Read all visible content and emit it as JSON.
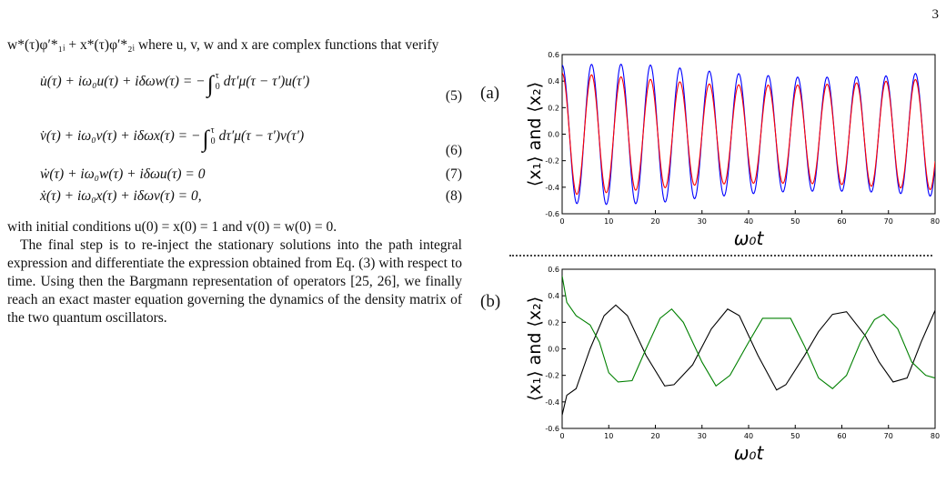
{
  "page_number": "3",
  "text": {
    "intro": "w*(τ)φ′*₁ᵢ + x*(τ)φ′*₂ᵢ where u, v, w and x are complex functions that verify",
    "eq5_lhs": "u̇(τ) + iω₀u(τ) + iδωw(τ) = −",
    "eq5_rhs": "dτ′μ(τ − τ′)u(τ′)",
    "eq5_num": "(5)",
    "eq6_lhs": "v̇(τ) + iω₀v(τ) + iδωx(τ) = −",
    "eq6_rhs": "dτ′μ(τ − τ′)v(τ′)",
    "eq6_num": "(6)",
    "eq7": "ẇ(τ) + iω₀w(τ) + iδωu(τ) = 0",
    "eq7_num": "(7)",
    "eq8": "ẋ(τ) + iω₀x(τ) + iδωv(τ) = 0,",
    "eq8_num": "(8)",
    "int_upper": "τ",
    "int_lower": "0",
    "initial": "with initial conditions u(0) = x(0) = 1 and v(0) = w(0) = 0.",
    "final": "The final step is to re-inject the stationary solutions into the path integral expression and differentiate the expression obtained from Eq. (3) with respect to time. Using then the Bargmann representation of operators [25, 26], we finally reach an exact master equation governing the dynamics of the density matrix of the two quantum oscillators."
  },
  "panels": {
    "a_label": "(a)",
    "b_label": "(b)",
    "ylabel": "⟨x₁⟩ and ⟨x₂⟩",
    "xlabel": "ω₀t"
  },
  "chart_data": [
    {
      "type": "line",
      "panel": "(a)",
      "xlabel": "ω₀t",
      "ylabel": "⟨x₁⟩ and ⟨x₂⟩",
      "xlim": [
        0,
        80
      ],
      "ylim": [
        -0.6,
        0.6
      ],
      "xticks": [
        0,
        10,
        20,
        30,
        40,
        50,
        60,
        70,
        80
      ],
      "yticks": [
        -0.6,
        -0.4,
        -0.2,
        0.0,
        0.2,
        0.4,
        0.6
      ],
      "series": [
        {
          "color": "#0000ff",
          "form": "cos",
          "omega": 0.995,
          "amp": [
            0.52,
            0.53,
            0.52,
            0.48,
            0.45,
            0.43,
            0.43,
            0.44,
            0.47
          ]
        },
        {
          "color": "#ff0000",
          "form": "cos",
          "omega": 0.995,
          "amp": [
            0.46,
            0.44,
            0.41,
            0.38,
            0.37,
            0.37,
            0.38,
            0.4,
            0.42
          ]
        }
      ]
    },
    {
      "type": "line",
      "panel": "(b)",
      "xlabel": "ω₀t",
      "ylabel": "⟨x₁⟩ and ⟨x₂⟩",
      "xlim": [
        0,
        80
      ],
      "ylim": [
        -0.6,
        0.6
      ],
      "xticks": [
        0,
        10,
        20,
        30,
        40,
        50,
        60,
        70,
        80
      ],
      "yticks": [
        -0.6,
        -0.4,
        -0.2,
        0.0,
        0.2,
        0.4,
        0.6
      ],
      "series": [
        {
          "color": "#000000",
          "points": [
            [
              0,
              -0.5
            ],
            [
              1,
              -0.35
            ],
            [
              3,
              -0.3
            ],
            [
              6,
              0.0
            ],
            [
              9,
              0.25
            ],
            [
              11.5,
              0.33
            ],
            [
              14,
              0.25
            ],
            [
              18,
              -0.05
            ],
            [
              22,
              -0.28
            ],
            [
              24,
              -0.27
            ],
            [
              28,
              -0.12
            ],
            [
              32,
              0.15
            ],
            [
              35.5,
              0.3
            ],
            [
              38,
              0.25
            ],
            [
              42,
              -0.05
            ],
            [
              46,
              -0.31
            ],
            [
              48,
              -0.27
            ],
            [
              52,
              -0.05
            ],
            [
              55,
              0.13
            ],
            [
              58,
              0.26
            ],
            [
              61,
              0.28
            ],
            [
              65,
              0.1
            ],
            [
              68,
              -0.1
            ],
            [
              71,
              -0.25
            ],
            [
              74,
              -0.22
            ],
            [
              77,
              0.05
            ],
            [
              80,
              0.29
            ]
          ]
        },
        {
          "color": "#008000",
          "points": [
            [
              0,
              0.55
            ],
            [
              1,
              0.35
            ],
            [
              3,
              0.25
            ],
            [
              6,
              0.18
            ],
            [
              8,
              0.05
            ],
            [
              10,
              -0.18
            ],
            [
              12,
              -0.25
            ],
            [
              15,
              -0.24
            ],
            [
              18,
              0.0
            ],
            [
              21,
              0.23
            ],
            [
              23.5,
              0.3
            ],
            [
              26,
              0.2
            ],
            [
              30,
              -0.1
            ],
            [
              33,
              -0.28
            ],
            [
              36,
              -0.2
            ],
            [
              40,
              0.05
            ],
            [
              43,
              0.23
            ],
            [
              46,
              0.23
            ],
            [
              49,
              0.23
            ],
            [
              52,
              0.02
            ],
            [
              55,
              -0.22
            ],
            [
              58,
              -0.3
            ],
            [
              61,
              -0.2
            ],
            [
              64,
              0.05
            ],
            [
              67,
              0.22
            ],
            [
              69,
              0.26
            ],
            [
              72,
              0.15
            ],
            [
              75,
              -0.1
            ],
            [
              78,
              -0.2
            ],
            [
              80,
              -0.22
            ]
          ]
        }
      ]
    }
  ]
}
